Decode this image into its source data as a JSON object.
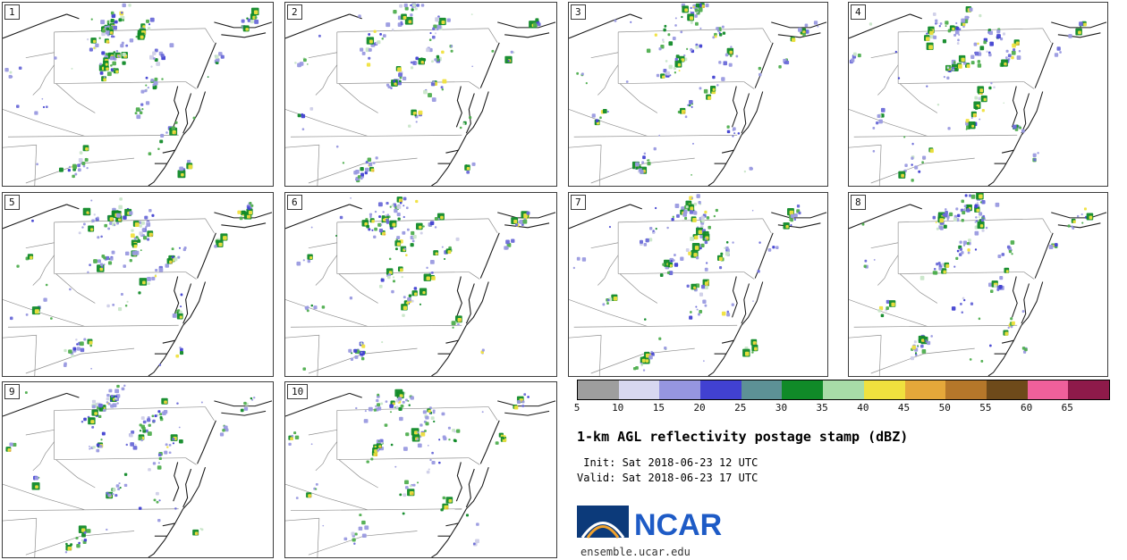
{
  "title": "1-km AGL reflectivity postage stamp (dBZ)",
  "init_line": " Init: Sat 2018-06-23 12 UTC",
  "valid_line": "Valid: Sat 2018-06-23 17 UTC",
  "footer_url": "ensemble.ucar.edu",
  "logo": {
    "text": "NCAR",
    "color": "#1e5bc6"
  },
  "panels": [
    "1",
    "2",
    "3",
    "4",
    "5",
    "6",
    "7",
    "8",
    "9",
    "10"
  ],
  "colorbar": {
    "units": "dBZ",
    "labels": [
      "5",
      "10",
      "15",
      "20",
      "25",
      "30",
      "35",
      "40",
      "45",
      "50",
      "55",
      "60",
      "65"
    ],
    "colors": [
      "#9e9e9e",
      "#d8d8f0",
      "#9696e0",
      "#4141d1",
      "#5d9196",
      "#108a28",
      "#a8dca8",
      "#f0e13e",
      "#e5a83a",
      "#b5772a",
      "#6e4a1a",
      "#ef609b",
      "#8e1a4a"
    ]
  },
  "chart_data": {
    "type": "heatmap",
    "subtype": "ensemble postage-stamp radar reflectivity maps",
    "title": "1-km AGL reflectivity postage stamp (dBZ)",
    "members": [
      "1",
      "2",
      "3",
      "4",
      "5",
      "6",
      "7",
      "8",
      "9",
      "10"
    ],
    "init": "Sat 2018-06-23 12 UTC",
    "valid": "Sat 2018-06-23 17 UTC",
    "units": "dBZ",
    "colorbar_ticks_dbz": [
      5,
      10,
      15,
      20,
      25,
      30,
      35,
      40,
      45,
      50,
      55,
      60,
      65
    ],
    "colorbar_colors": [
      "#9e9e9e",
      "#d8d8f0",
      "#9696e0",
      "#4141d1",
      "#5d9196",
      "#108a28",
      "#a8dca8",
      "#f0e13e",
      "#e5a83a",
      "#b5772a",
      "#6e4a1a",
      "#ef609b",
      "#8e1a4a"
    ],
    "legend_position": "bottom-right",
    "grid_layout": "10 map panels arranged in rows of 4, 4 and 2"
  }
}
